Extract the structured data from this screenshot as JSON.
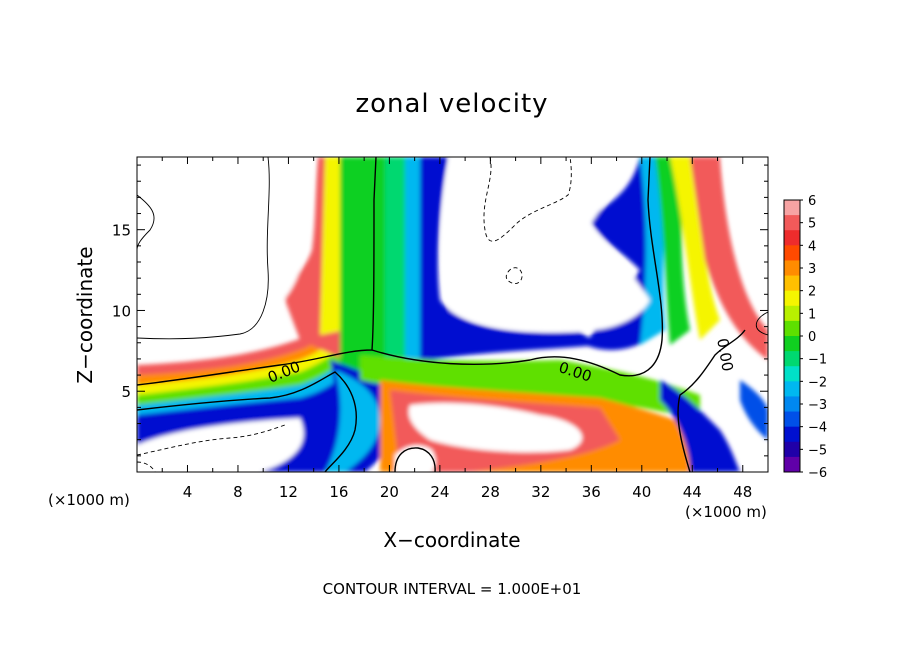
{
  "chart_data": {
    "type": "heatmap",
    "title": "zonal velocity",
    "xlabel": "X−coordinate",
    "ylabel": "Z−coordinate",
    "x_unit_left": "(×1000 m)",
    "x_unit_right": "(×1000 m)",
    "xlim": [
      0,
      50
    ],
    "ylim": [
      0,
      19.5
    ],
    "x_ticks": [
      4,
      8,
      12,
      16,
      20,
      24,
      28,
      32,
      36,
      40,
      44,
      48
    ],
    "y_ticks": [
      5,
      10,
      15
    ],
    "colorbar": {
      "labels": [
        "6",
        "5",
        "4",
        "3",
        "2",
        "1",
        "0",
        "−1",
        "−2",
        "−3",
        "−4",
        "−5",
        "−6"
      ],
      "colors": [
        "#f7a3a3",
        "#f25a5a",
        "#ee2c2c",
        "#ff4a00",
        "#ff8c00",
        "#ffc000",
        "#f5f500",
        "#b8f000",
        "#5ee000",
        "#10d020",
        "#00d870",
        "#00e0c8",
        "#00b8f0",
        "#0088f0",
        "#0050e8",
        "#0010d0",
        "#2000a8",
        "#6000a8"
      ]
    },
    "contour_labels": [
      {
        "text": "0.00",
        "x": 11.8,
        "y": 5.9,
        "rotate": -22
      },
      {
        "text": "0.00",
        "x": 34.6,
        "y": 5.9,
        "rotate": 18
      },
      {
        "text": "0.00",
        "x": 46.2,
        "y": 7.2,
        "rotate": 80
      }
    ],
    "footer": "CONTOUR INTERVAL = 1.000E+01"
  }
}
